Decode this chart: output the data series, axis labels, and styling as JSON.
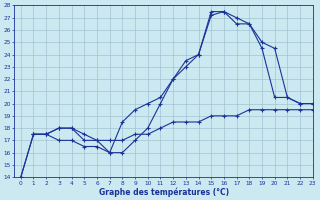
{
  "xlabel": "Graphe des températures (°C)",
  "xlim": [
    -0.5,
    23
  ],
  "ylim": [
    14,
    28
  ],
  "yticks": [
    14,
    15,
    16,
    17,
    18,
    19,
    20,
    21,
    22,
    23,
    24,
    25,
    26,
    27,
    28
  ],
  "xticks": [
    0,
    1,
    2,
    3,
    4,
    5,
    6,
    7,
    8,
    9,
    10,
    11,
    12,
    13,
    14,
    15,
    16,
    17,
    18,
    19,
    20,
    21,
    22,
    23
  ],
  "bg_color": "#cce8f0",
  "line_color_dark": "#1a3399",
  "line_color_mid": "#2244cc",
  "grid_color": "#99bbcc",
  "series1": {
    "x": [
      0,
      1,
      2,
      3,
      4,
      5,
      6,
      7,
      8,
      9,
      10,
      11,
      12,
      13,
      14,
      15,
      16,
      17,
      18,
      19,
      20,
      21,
      22,
      23
    ],
    "y": [
      14,
      17.5,
      17.5,
      17,
      17,
      16.5,
      16.5,
      16,
      18.5,
      19.5,
      20,
      20.5,
      22,
      23,
      24,
      27.5,
      27.5,
      27,
      26.5,
      24.5,
      20.5,
      20.5,
      20,
      20
    ]
  },
  "series2": {
    "x": [
      1,
      2,
      3,
      4,
      5,
      6,
      7,
      8,
      9,
      10,
      11,
      12,
      13,
      14,
      15,
      16,
      17,
      18,
      19,
      20,
      21,
      22,
      23
    ],
    "y": [
      17.5,
      17.5,
      18,
      18,
      17,
      17,
      17,
      17,
      17.5,
      17.5,
      18,
      18.5,
      18.5,
      18.5,
      19,
      19,
      19,
      19.5,
      19.5,
      19.5,
      19.5,
      19.5,
      19.5
    ]
  },
  "series3": {
    "x": [
      0,
      1,
      2,
      3,
      4,
      5,
      6,
      7,
      8,
      9,
      10,
      11,
      12,
      13,
      14,
      15,
      16,
      17,
      18,
      19,
      20,
      21,
      22,
      23
    ],
    "y": [
      14,
      17.5,
      17.5,
      18,
      18,
      17.5,
      17,
      16,
      16,
      17,
      18,
      20,
      22,
      23.5,
      24,
      27.2,
      27.5,
      26.5,
      26.5,
      25,
      24.5,
      20.5,
      20,
      20
    ]
  }
}
